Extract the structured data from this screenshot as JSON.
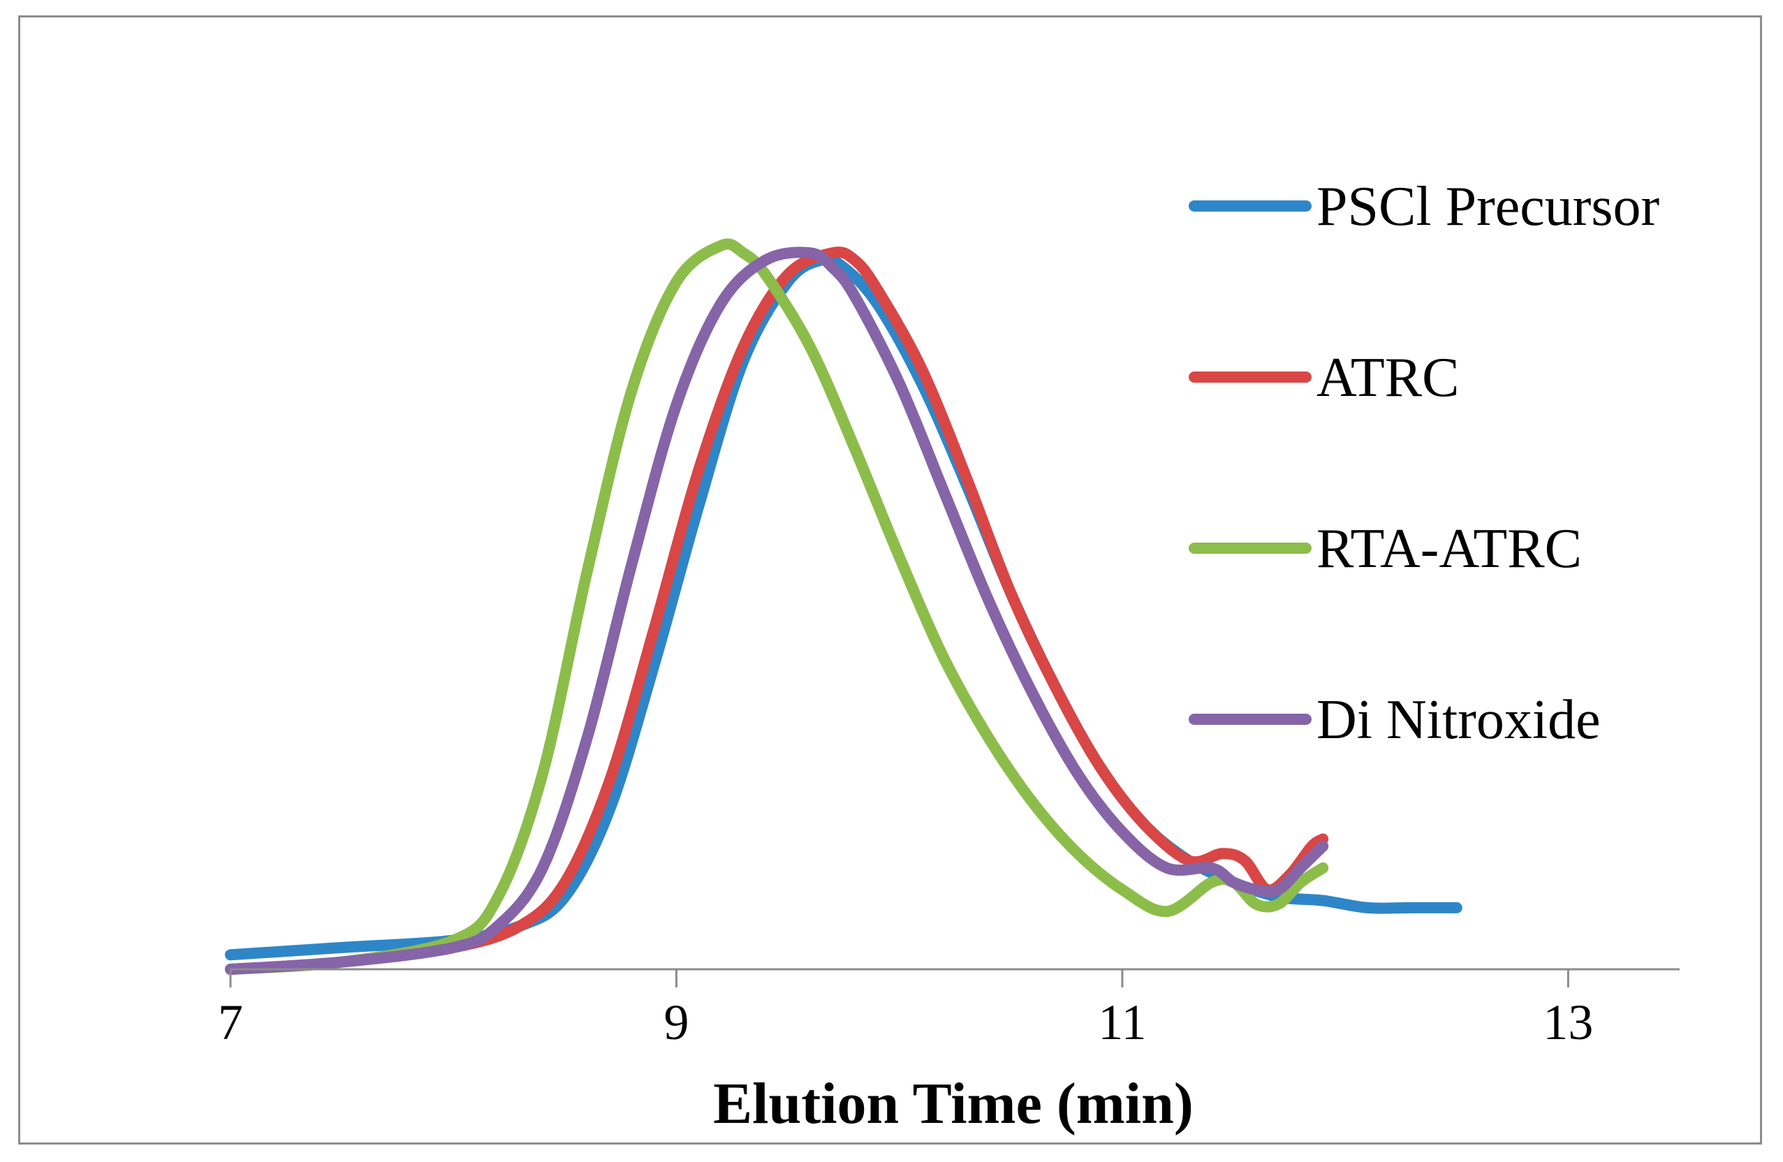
{
  "chart_data": {
    "type": "line",
    "title": "",
    "xlabel": "Elution Time (min)",
    "ylabel": "",
    "xlim": [
      7,
      13.5
    ],
    "ylim": [
      0,
      1.05
    ],
    "xticks": [
      "7",
      "9",
      "11",
      "13"
    ],
    "grid": false,
    "legend_position": "right",
    "series": [
      {
        "name": "PSCl Precursor",
        "color": "#2e86c8",
        "x": [
          7.0,
          7.5,
          8.0,
          8.3,
          8.5,
          8.7,
          8.9,
          9.1,
          9.3,
          9.5,
          9.65,
          9.75,
          9.9,
          10.1,
          10.3,
          10.5,
          10.7,
          10.9,
          11.1,
          11.3,
          11.5,
          11.7,
          11.9,
          12.1,
          12.3,
          12.5
        ],
        "y": [
          0.02,
          0.03,
          0.04,
          0.06,
          0.1,
          0.22,
          0.42,
          0.64,
          0.84,
          0.95,
          0.98,
          0.97,
          0.92,
          0.81,
          0.67,
          0.52,
          0.39,
          0.28,
          0.2,
          0.15,
          0.12,
          0.1,
          0.095,
          0.085,
          0.085,
          0.085
        ]
      },
      {
        "name": "ATRC",
        "color": "#d94646",
        "x": [
          7.0,
          7.5,
          8.0,
          8.3,
          8.5,
          8.7,
          8.9,
          9.1,
          9.3,
          9.5,
          9.7,
          9.8,
          9.9,
          10.1,
          10.3,
          10.5,
          10.7,
          10.9,
          11.1,
          11.3,
          11.45,
          11.55,
          11.65,
          11.75,
          11.85,
          11.9
        ],
        "y": [
          0.0,
          0.01,
          0.03,
          0.06,
          0.12,
          0.26,
          0.47,
          0.69,
          0.86,
          0.96,
          0.99,
          0.98,
          0.94,
          0.83,
          0.68,
          0.52,
          0.39,
          0.28,
          0.2,
          0.15,
          0.16,
          0.15,
          0.11,
          0.13,
          0.17,
          0.18
        ]
      },
      {
        "name": "RTA-ATRC",
        "color": "#8cbd4a",
        "x": [
          7.0,
          7.5,
          8.0,
          8.2,
          8.4,
          8.6,
          8.8,
          9.0,
          9.2,
          9.3,
          9.4,
          9.6,
          9.8,
          10.0,
          10.2,
          10.4,
          10.6,
          10.8,
          11.0,
          11.2,
          11.4,
          11.5,
          11.6,
          11.7,
          11.8,
          11.9
        ],
        "y": [
          0.0,
          0.01,
          0.04,
          0.1,
          0.27,
          0.55,
          0.8,
          0.95,
          1.0,
          0.99,
          0.96,
          0.86,
          0.72,
          0.57,
          0.43,
          0.32,
          0.23,
          0.16,
          0.11,
          0.08,
          0.12,
          0.12,
          0.09,
          0.09,
          0.12,
          0.14
        ]
      },
      {
        "name": "Di Nitroxide",
        "color": "#8664a8",
        "x": [
          7.0,
          7.5,
          8.0,
          8.2,
          8.4,
          8.6,
          8.8,
          9.0,
          9.2,
          9.4,
          9.6,
          9.7,
          9.8,
          10.0,
          10.2,
          10.4,
          10.6,
          10.8,
          11.0,
          11.2,
          11.4,
          11.5,
          11.6,
          11.7,
          11.8,
          11.9
        ],
        "y": [
          0.0,
          0.01,
          0.03,
          0.06,
          0.14,
          0.32,
          0.56,
          0.78,
          0.92,
          0.98,
          0.99,
          0.97,
          0.93,
          0.81,
          0.66,
          0.51,
          0.38,
          0.27,
          0.19,
          0.14,
          0.14,
          0.12,
          0.11,
          0.11,
          0.14,
          0.17
        ]
      }
    ]
  }
}
